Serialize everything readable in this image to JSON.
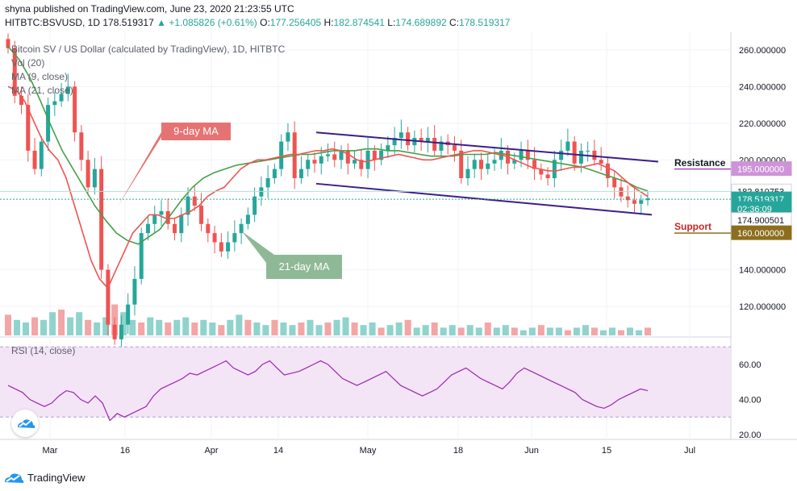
{
  "header": {
    "line1": "shyna published on TradingView.com, June 23, 2020 21:23:55 UTC",
    "symbol": "HITBTC:BSVUSD, 1D",
    "close": "178.519317",
    "change": "▲ +1.085826 (+0.61%)",
    "o_label": "O:",
    "o_value": "177.256405",
    "h_label": "H:",
    "h_value": "182.874541",
    "l_label": "L:",
    "l_value": "174.689892",
    "c_label": "C:",
    "c_value": "178.519317"
  },
  "indicators": {
    "title": "Bitcoin SV / US Dollar (calculated by TradingView), 1D, HITBTC",
    "vol": "Vol (20)",
    "ma9": "MA (9, close)",
    "ma21": "MA (21, close)",
    "rsi": "RSI (14, close)"
  },
  "annotations": {
    "ma9_label": "9-day MA",
    "ma21_label": "21-day MA",
    "resistance": "Resistance",
    "support": "Support"
  },
  "price_axis": {
    "ticks": [
      "260.000000",
      "240.000000",
      "220.000000",
      "200.000000",
      "140.000000",
      "120.000000"
    ],
    "badges": [
      {
        "text": "195.000000",
        "value": 195,
        "bg": "#ce93d8",
        "fg": "#ffffff"
      },
      {
        "text": "182.810753",
        "value": 182.81,
        "bg": "#ffffff",
        "fg": "#131722"
      },
      {
        "text": "178.519317",
        "value": 178.52,
        "bg": "#26a69a",
        "fg": "#ffffff"
      },
      {
        "text": "02:36:09",
        "value": 173.2,
        "bg": "#26a69a",
        "fg": "#ffffff"
      },
      {
        "text": "174.900501",
        "value": 167.2,
        "bg": "#ffffff",
        "fg": "#131722"
      },
      {
        "text": "160.000000",
        "value": 160,
        "bg": "#8d6e1f",
        "fg": "#ffffff"
      }
    ]
  },
  "rsi_axis": {
    "ticks": [
      "60.00",
      "40.00",
      "20.00"
    ]
  },
  "time_axis": {
    "ticks": [
      "Mar",
      "16",
      "Apr",
      "14",
      "May",
      "18",
      "Jun",
      "15",
      "Jul"
    ]
  },
  "branding": {
    "name": "TradingView"
  },
  "colors": {
    "up": "#26a69a",
    "down": "#ef5350",
    "ma9": "#ef5350",
    "ma21": "#43a047",
    "channel": "#3b1e8c",
    "rsi": "#9c27b0",
    "rsi_band": "#f3e5f5",
    "ma9_label_bg": "#e57373",
    "ma21_label_bg": "#8fb996",
    "support_line": "#8d6e1f",
    "resistance_line": "#ab47bc"
  },
  "chart_data": {
    "type": "candlestick",
    "title": "Bitcoin SV / US Dollar (calculated by TradingView), 1D, HITBTC",
    "yaxis_labels": [
      "260.000000",
      "240.000000",
      "220.000000",
      "200.000000",
      "140.000000",
      "120.000000"
    ],
    "closes": [
      261,
      235,
      230,
      205,
      195,
      210,
      230,
      232,
      236,
      240,
      215,
      200,
      185,
      195,
      140,
      110,
      102,
      110,
      121,
      135,
      160,
      165,
      170,
      172,
      165,
      160,
      170,
      180,
      175,
      165,
      160,
      155,
      150,
      155,
      160,
      165,
      170,
      180,
      185,
      190,
      195,
      210,
      215,
      190,
      195,
      200,
      198,
      202,
      203,
      200,
      205,
      198,
      200,
      195,
      205,
      200,
      205,
      208,
      212,
      215,
      208,
      212,
      210,
      212,
      205,
      210,
      208,
      205,
      190,
      195,
      200,
      195,
      198,
      200,
      205,
      198,
      200,
      205,
      200,
      195,
      192,
      190,
      200,
      205,
      210,
      198,
      205,
      205,
      200,
      198,
      190,
      185,
      180,
      178,
      176,
      178,
      179
    ],
    "ma9_approx": [
      240,
      238,
      232,
      222,
      212,
      205,
      200,
      190,
      175,
      160,
      145,
      135,
      130,
      140,
      150,
      160,
      165,
      170,
      170,
      168,
      168,
      170,
      172,
      175,
      180,
      183,
      185,
      190,
      195,
      198,
      200,
      200,
      201,
      202,
      203,
      203,
      204,
      205,
      205,
      206,
      205,
      203,
      200,
      199,
      200,
      201,
      202,
      203,
      202,
      201,
      200,
      200,
      201,
      202,
      203,
      204,
      205,
      205,
      204,
      203,
      202,
      200,
      198,
      196,
      195,
      194,
      194,
      195,
      196,
      196,
      197,
      198,
      196,
      194,
      190,
      186,
      183,
      180
    ],
    "ma21_approx": [
      262,
      255,
      245,
      232,
      218,
      205,
      195,
      185,
      175,
      167,
      160,
      156,
      154,
      158,
      162,
      170,
      178,
      185,
      190,
      193,
      195,
      197,
      198,
      199,
      200,
      201,
      202,
      203,
      203,
      204,
      205,
      205,
      205,
      206,
      206,
      205,
      205,
      204,
      203,
      202,
      202,
      202,
      203,
      203,
      203,
      204,
      203,
      202,
      201,
      200,
      199,
      198,
      197,
      196,
      194,
      192,
      190,
      188,
      185,
      183
    ],
    "volume_relative": [
      0.8,
      0.6,
      0.5,
      0.7,
      0.6,
      0.9,
      1.0,
      0.7,
      0.9,
      0.6,
      0.5,
      0.7,
      1.2,
      0.9,
      0.6,
      0.5,
      0.7,
      0.6,
      0.5,
      0.6,
      0.7,
      0.5,
      0.6,
      0.5,
      0.4,
      0.6,
      0.8,
      0.6,
      0.5,
      0.4,
      0.6,
      0.5,
      0.4,
      0.5,
      0.6,
      0.4,
      0.5,
      0.6,
      0.7,
      0.5,
      0.4,
      0.5,
      0.3,
      0.4,
      0.5,
      0.6,
      0.3,
      0.4,
      0.5,
      0.3,
      0.4,
      0.3,
      0.4,
      0.3,
      0.5,
      0.3,
      0.4,
      0.3,
      0.2,
      0.3,
      0.4,
      0.3,
      0.3,
      0.2,
      0.3,
      0.4,
      0.3,
      0.2,
      0.3,
      0.2,
      0.3,
      0.2,
      0.3
    ],
    "channel_upper": [
      [
        20,
        215
      ],
      [
        120,
        200
      ]
    ],
    "channel_lower": [
      [
        20,
        188
      ],
      [
        120,
        172
      ]
    ],
    "rsi_values": [
      48,
      46,
      44,
      40,
      38,
      36,
      38,
      42,
      45,
      44,
      40,
      38,
      42,
      38,
      28,
      32,
      30,
      32,
      34,
      36,
      42,
      46,
      48,
      50,
      52,
      55,
      54,
      56,
      58,
      60,
      62,
      58,
      56,
      54,
      56,
      60,
      62,
      58,
      54,
      55,
      56,
      58,
      60,
      62,
      60,
      56,
      52,
      50,
      48,
      50,
      52,
      54,
      56,
      52,
      48,
      46,
      44,
      42,
      44,
      46,
      50,
      54,
      56,
      58,
      55,
      52,
      50,
      48,
      46,
      50,
      55,
      58,
      56,
      54,
      52,
      50,
      48,
      46,
      44,
      40,
      38,
      36,
      35,
      37,
      40,
      42,
      44,
      46,
      45
    ],
    "rsi_band": [
      30,
      70
    ],
    "x_ticks": [
      "Mar",
      "16",
      "Apr",
      "14",
      "May",
      "18",
      "Jun",
      "15",
      "Jul"
    ],
    "levels": {
      "resistance": 195,
      "support": 160,
      "last": 178.519317
    }
  }
}
